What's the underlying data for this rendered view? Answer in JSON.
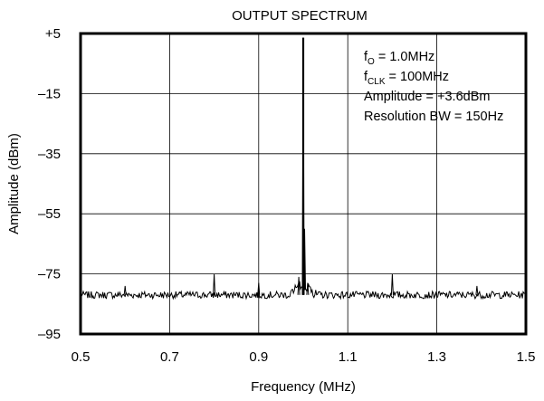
{
  "chart_data": {
    "type": "line",
    "title": "OUTPUT SPECTRUM",
    "xlabel": "Frequency (MHz)",
    "ylabel": "Amplitude (dBm)",
    "xlim": [
      0.5,
      1.5
    ],
    "ylim": [
      -95,
      5
    ],
    "x_ticks": [
      0.5,
      0.7,
      0.9,
      1.1,
      1.3,
      1.5
    ],
    "x_tick_labels": [
      "0.5",
      "0.7",
      "0.9",
      "1.1",
      "1.3",
      "1.5"
    ],
    "y_ticks": [
      5,
      -15,
      -35,
      -55,
      -75,
      -95
    ],
    "y_tick_labels": [
      "+5",
      "–15",
      "–35",
      "–55",
      "–75",
      "–95"
    ],
    "grid": true,
    "noise_floor_dbm": -82,
    "spurs": [
      {
        "x": 0.6,
        "y": -79
      },
      {
        "x": 0.8,
        "y": -75
      },
      {
        "x": 0.9,
        "y": -78
      },
      {
        "x": 0.99,
        "y": -76
      },
      {
        "x": 1.0,
        "y": 3.6
      },
      {
        "x": 1.01,
        "y": -78
      },
      {
        "x": 1.2,
        "y": -75
      },
      {
        "x": 1.39,
        "y": -79
      }
    ],
    "annotations": [
      {
        "text": "f",
        "sub": "O",
        "rest": " = 1.0MHz"
      },
      {
        "text": "f",
        "sub": "CLK",
        "rest": " = 100MHz"
      },
      {
        "text": "Amplitude = +3.6dBm",
        "sub": "",
        "rest": ""
      },
      {
        "text": "Resolution BW = 150Hz",
        "sub": "",
        "rest": ""
      }
    ]
  }
}
